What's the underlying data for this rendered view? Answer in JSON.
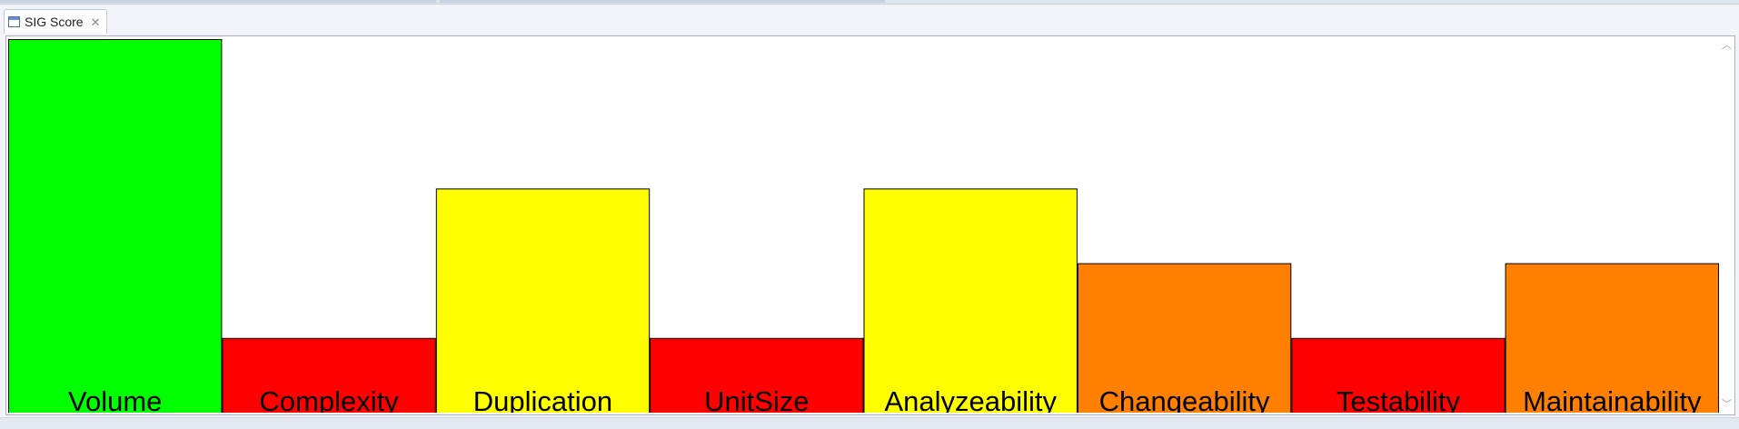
{
  "tab": {
    "title": "SIG Score",
    "icon": "view-window-icon",
    "close_icon": "close-icon"
  },
  "chart_data": {
    "type": "bar",
    "title": "",
    "xlabel": "",
    "ylabel": "",
    "ylim": [
      0,
      5
    ],
    "grid": false,
    "legend": "none",
    "categories": [
      "Volume",
      "Complexity",
      "Duplication",
      "UnitSize",
      "Analyzeability",
      "Changeability",
      "Testability",
      "Maintainability"
    ],
    "values": [
      5,
      1,
      3,
      1,
      3,
      2,
      1,
      2
    ],
    "colors": [
      "#00ff00",
      "#ff0000",
      "#ffff00",
      "#ff0000",
      "#ffff00",
      "#ff8000",
      "#ff0000",
      "#ff8000"
    ]
  },
  "scrollbar": {
    "up_icon": "scroll-up-icon",
    "down_icon": "scroll-down-icon"
  }
}
